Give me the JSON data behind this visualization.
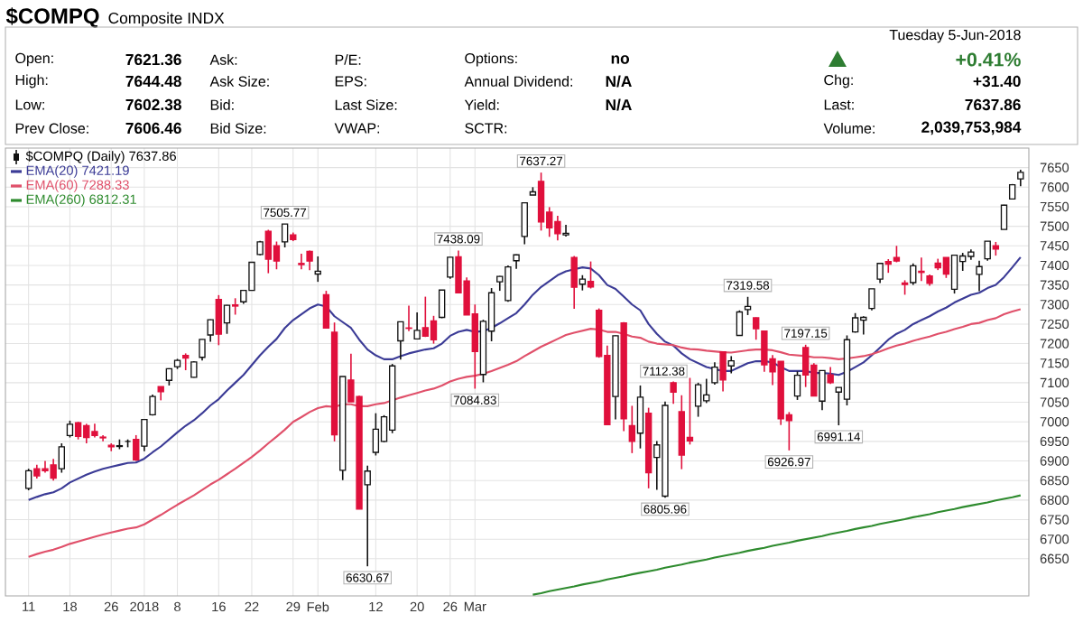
{
  "chart_data": {
    "type": "candlestick",
    "title": "$COMPQ",
    "subtitle": "Composite INDX",
    "legend_title": "$COMPQ (Daily) 7637.86",
    "legend": "top left",
    "grid": true,
    "categories": [
      "11",
      null,
      null,
      null,
      null,
      "18",
      null,
      null,
      null,
      null,
      "26",
      null,
      null,
      null,
      "2018",
      null,
      null,
      null,
      "8",
      null,
      null,
      null,
      null,
      "16",
      null,
      null,
      null,
      "22",
      null,
      null,
      null,
      null,
      "29",
      null,
      null,
      "Feb",
      null,
      null,
      null,
      null,
      null,
      null,
      "12",
      null,
      null,
      null,
      null,
      "20",
      null,
      null,
      null,
      "26",
      null,
      null,
      "Mar",
      null,
      null,
      null,
      null,
      null,
      null,
      null,
      null,
      null,
      null,
      null,
      null,
      null,
      null,
      null,
      null,
      null,
      null,
      null,
      null,
      null,
      null,
      null,
      null,
      null,
      null,
      null,
      null,
      null,
      null,
      null,
      null,
      null,
      null,
      null,
      null,
      null,
      null,
      null,
      null,
      null,
      null,
      null,
      null,
      null,
      null,
      null,
      null,
      null,
      null,
      null,
      null,
      null,
      null,
      null,
      null,
      null,
      null,
      null,
      null,
      null,
      null,
      null,
      null,
      null,
      null
    ],
    "ohlc": [
      [
        6830,
        6880,
        6825,
        6875
      ],
      [
        6880,
        6890,
        6855,
        6862
      ],
      [
        6880,
        6900,
        6870,
        6875
      ],
      [
        6890,
        6905,
        6850,
        6856
      ],
      [
        6880,
        6945,
        6870,
        6936
      ],
      [
        6965,
        7003,
        6960,
        6994
      ],
      [
        6998,
        7000,
        6955,
        6963
      ],
      [
        6990,
        6995,
        6945,
        6960
      ],
      [
        6975,
        6995,
        6960,
        6965
      ],
      [
        6961,
        6966,
        6950,
        6959
      ],
      [
        6940,
        6945,
        6925,
        6936
      ],
      [
        6937,
        6955,
        6930,
        6939
      ],
      [
        6950,
        6955,
        6935,
        6950
      ],
      [
        6955,
        6966,
        6900,
        6903
      ],
      [
        6938,
        7007,
        6925,
        7006
      ],
      [
        7018,
        7070,
        7016,
        7065
      ],
      [
        7090,
        7090,
        7055,
        7077
      ],
      [
        7106,
        7137,
        7093,
        7136
      ],
      [
        7141,
        7161,
        7135,
        7157
      ],
      [
        7170,
        7175,
        7132,
        7163
      ],
      [
        7114,
        7155,
        7113,
        7153
      ],
      [
        7165,
        7211,
        7157,
        7211
      ],
      [
        7222,
        7262,
        7205,
        7261
      ],
      [
        7313,
        7324,
        7196,
        7224
      ],
      [
        7253,
        7299,
        7225,
        7298
      ],
      [
        7299,
        7316,
        7274,
        7296
      ],
      [
        7307,
        7337,
        7302,
        7336
      ],
      [
        7336,
        7409,
        7335,
        7408
      ],
      [
        7428,
        7463,
        7426,
        7460
      ],
      [
        7487,
        7491,
        7380,
        7416
      ],
      [
        7450,
        7461,
        7390,
        7411
      ],
      [
        7460,
        7505.77,
        7446,
        7505.77
      ],
      [
        7478,
        7484,
        7462,
        7466
      ],
      [
        7405,
        7430,
        7390,
        7402
      ],
      [
        7436,
        7438,
        7388,
        7411
      ],
      [
        7378,
        7423,
        7358,
        7385
      ],
      [
        7325,
        7335,
        7239,
        7240
      ],
      [
        7229,
        7254,
        6950,
        6967
      ],
      [
        6876,
        7116,
        6851,
        7116
      ],
      [
        7107,
        7174,
        7051,
        7051
      ],
      [
        7065,
        7067,
        6777,
        6777
      ],
      [
        6839,
        6888,
        6630.67,
        6874
      ],
      [
        6922,
        7022,
        6914,
        6981
      ],
      [
        6950,
        7017,
        6948,
        7013
      ],
      [
        6979,
        7148,
        6971,
        7143
      ],
      [
        7207,
        7256,
        7159,
        7256
      ],
      [
        7240,
        7297,
        7232,
        7239
      ],
      [
        7212,
        7280,
        7212,
        7234
      ],
      [
        7241,
        7320,
        7217,
        7219
      ],
      [
        7258,
        7271,
        7200,
        7210
      ],
      [
        7267,
        7337,
        7265,
        7337
      ],
      [
        7370,
        7421,
        7366,
        7421
      ],
      [
        7422,
        7438.09,
        7330,
        7330
      ],
      [
        7360,
        7369,
        7273,
        7273
      ],
      [
        7276,
        7300,
        7084.83,
        7180
      ],
      [
        7121,
        7261,
        7101,
        7257
      ],
      [
        7232,
        7342,
        7206,
        7330
      ],
      [
        7358,
        7373,
        7335,
        7372
      ],
      [
        7310,
        7400,
        7307,
        7396
      ],
      [
        7412,
        7428,
        7391,
        7427
      ],
      [
        7474,
        7560,
        7454,
        7560
      ],
      [
        7580,
        7600,
        7580,
        7588
      ],
      [
        7615,
        7637.27,
        7489,
        7511
      ],
      [
        7536,
        7549,
        7473,
        7496
      ],
      [
        7512,
        7527,
        7464,
        7481
      ],
      [
        7478,
        7504,
        7474,
        7482
      ],
      [
        7420,
        7424,
        7289,
        7344
      ],
      [
        7352,
        7375,
        7336,
        7365
      ],
      [
        7359,
        7410,
        7341,
        7345
      ],
      [
        7285,
        7290,
        7164,
        7167
      ],
      [
        7170,
        7195,
        6993,
        6993
      ],
      [
        7065,
        7221,
        7006,
        7220
      ],
      [
        7253,
        7255,
        6976,
        7008
      ],
      [
        6990,
        7041,
        6920,
        6950
      ],
      [
        6971,
        7093,
        6932,
        7063
      ],
      [
        7022,
        7036,
        6830,
        6870
      ],
      [
        6909,
        6951,
        6826,
        6941
      ],
      [
        6810,
        7052,
        6805.96,
        7042
      ],
      [
        7100,
        7103,
        7046,
        7076
      ],
      [
        7026,
        7068,
        6879,
        6915
      ],
      [
        6960,
        7112.38,
        6942,
        6951
      ],
      [
        7040,
        7100,
        7013,
        7095
      ],
      [
        7054,
        7110,
        7048,
        7069
      ],
      [
        7100,
        7152,
        7095,
        7140
      ],
      [
        7179,
        7180,
        7078,
        7107
      ],
      [
        7143,
        7168,
        7124,
        7156
      ],
      [
        7221,
        7285,
        7221,
        7281
      ],
      [
        7287,
        7319.58,
        7273,
        7295
      ],
      [
        7266,
        7267,
        7210,
        7238
      ],
      [
        7232,
        7232,
        7128,
        7146
      ],
      [
        7161,
        7171,
        7094,
        7128
      ],
      [
        7155,
        7155,
        6992,
        7008
      ],
      [
        7018,
        7025,
        6926.97,
        7003
      ],
      [
        7066,
        7129,
        7056,
        7119
      ],
      [
        7190,
        7197.15,
        7089,
        7120
      ],
      [
        7145,
        7150,
        7066,
        7066
      ],
      [
        7053,
        7131,
        7030,
        7131
      ],
      [
        7120,
        7140,
        7097,
        7100
      ],
      [
        7076,
        7088,
        6991.14,
        7088
      ],
      [
        7058,
        7221,
        7042,
        7210
      ],
      [
        7230,
        7278,
        7228,
        7266
      ],
      [
        7260,
        7270,
        7223,
        7267
      ],
      [
        7290,
        7340,
        7285,
        7340
      ],
      [
        7365,
        7405,
        7355,
        7405
      ],
      [
        7410,
        7416,
        7381,
        7403
      ],
      [
        7420,
        7450,
        7408,
        7411
      ],
      [
        7355,
        7362,
        7325,
        7351
      ],
      [
        7356,
        7405,
        7350,
        7399
      ],
      [
        7385,
        7420,
        7360,
        7382
      ],
      [
        7373,
        7377,
        7348,
        7354
      ],
      [
        7406,
        7417,
        7388,
        7394
      ],
      [
        7420,
        7420,
        7368,
        7378
      ],
      [
        7339,
        7426,
        7328,
        7426
      ],
      [
        7410,
        7432,
        7386,
        7424
      ],
      [
        7423,
        7441,
        7414,
        7434
      ],
      [
        7377,
        7412,
        7334,
        7397
      ],
      [
        7417,
        7462,
        7412,
        7462
      ],
      [
        7450,
        7460,
        7425,
        7442
      ],
      [
        7492,
        7555,
        7492,
        7554
      ],
      [
        7570,
        7608,
        7570,
        7606
      ],
      [
        7621.36,
        7644.48,
        7602.38,
        7637.86
      ]
    ],
    "series": [
      {
        "name": "EMA(20) 7421.19",
        "type": "line",
        "color": "#3b3b96",
        "values": [
          6800,
          6808,
          6815,
          6820,
          6830,
          6845,
          6855,
          6865,
          6873,
          6880,
          6885,
          6890,
          6895,
          6896,
          6906,
          6922,
          6937,
          6955,
          6973,
          6990,
          7004,
          7022,
          7042,
          7058,
          7080,
          7100,
          7120,
          7145,
          7170,
          7192,
          7212,
          7240,
          7260,
          7275,
          7290,
          7300,
          7295,
          7270,
          7255,
          7240,
          7210,
          7185,
          7170,
          7160,
          7160,
          7168,
          7175,
          7180,
          7185,
          7188,
          7200,
          7220,
          7230,
          7235,
          7230,
          7232,
          7240,
          7252,
          7265,
          7278,
          7300,
          7325,
          7345,
          7360,
          7375,
          7385,
          7390,
          7395,
          7392,
          7375,
          7350,
          7340,
          7320,
          7300,
          7285,
          7250,
          7225,
          7205,
          7195,
          7175,
          7160,
          7150,
          7140,
          7135,
          7130,
          7130,
          7140,
          7150,
          7155,
          7155,
          7152,
          7140,
          7130,
          7130,
          7130,
          7125,
          7125,
          7123,
          7120,
          7128,
          7140,
          7152,
          7170,
          7190,
          7210,
          7225,
          7235,
          7250,
          7260,
          7270,
          7282,
          7292,
          7305,
          7315,
          7325,
          7330,
          7342,
          7350,
          7370,
          7395,
          7421
        ]
      },
      {
        "name": "EMA(60) 7288.33",
        "type": "line",
        "color": "#e0506a",
        "values": [
          6655,
          6662,
          6668,
          6673,
          6680,
          6688,
          6694,
          6700,
          6706,
          6712,
          6717,
          6722,
          6727,
          6730,
          6738,
          6750,
          6762,
          6775,
          6788,
          6800,
          6812,
          6826,
          6840,
          6852,
          6866,
          6880,
          6895,
          6910,
          6927,
          6945,
          6962,
          6980,
          7000,
          7012,
          7025,
          7035,
          7040,
          7038,
          7045,
          7045,
          7040,
          7040,
          7045,
          7048,
          7055,
          7062,
          7068,
          7074,
          7080,
          7085,
          7093,
          7103,
          7110,
          7115,
          7118,
          7123,
          7130,
          7138,
          7146,
          7155,
          7168,
          7180,
          7192,
          7202,
          7212,
          7222,
          7228,
          7233,
          7238,
          7236,
          7230,
          7230,
          7225,
          7218,
          7215,
          7205,
          7200,
          7198,
          7196,
          7190,
          7186,
          7185,
          7182,
          7180,
          7178,
          7177,
          7180,
          7183,
          7185,
          7185,
          7183,
          7178,
          7172,
          7170,
          7168,
          7165,
          7165,
          7163,
          7160,
          7162,
          7165,
          7168,
          7173,
          7180,
          7188,
          7195,
          7200,
          7207,
          7213,
          7218,
          7225,
          7230,
          7237,
          7243,
          7250,
          7253,
          7260,
          7265,
          7275,
          7282,
          7288
        ]
      },
      {
        "name": "EMA(260) 6812.31",
        "type": "line",
        "color": "#2e8b2e",
        "values": [
          null,
          null,
          null,
          null,
          null,
          null,
          null,
          null,
          null,
          null,
          null,
          null,
          null,
          null,
          null,
          null,
          null,
          null,
          null,
          null,
          null,
          null,
          null,
          null,
          null,
          null,
          null,
          null,
          null,
          null,
          null,
          null,
          null,
          null,
          null,
          null,
          null,
          null,
          null,
          null,
          null,
          null,
          null,
          null,
          null,
          null,
          null,
          null,
          null,
          null,
          null,
          null,
          null,
          null,
          null,
          null,
          null,
          null,
          null,
          null,
          null,
          6558,
          6562,
          6567,
          6571,
          6575,
          6579,
          6584,
          6588,
          6592,
          6597,
          6601,
          6605,
          6610,
          6614,
          6618,
          6622,
          6627,
          6631,
          6635,
          6640,
          6644,
          6648,
          6653,
          6657,
          6661,
          6665,
          6670,
          6674,
          6678,
          6683,
          6687,
          6691,
          6696,
          6700,
          6704,
          6708,
          6713,
          6717,
          6721,
          6726,
          6730,
          6734,
          6739,
          6743,
          6747,
          6751,
          6756,
          6760,
          6764,
          6769,
          6773,
          6777,
          6782,
          6786,
          6790,
          6794,
          6799,
          6803,
          6807,
          6812
        ]
      }
    ],
    "ylim": [
      6555,
      7700
    ],
    "yticks": [
      6650,
      6700,
      6750,
      6800,
      6850,
      6900,
      6950,
      7000,
      7050,
      7100,
      7150,
      7200,
      7250,
      7300,
      7350,
      7400,
      7450,
      7500,
      7550,
      7600,
      7650
    ],
    "annotations": [
      "Open:",
      "7621.36",
      "High:",
      "7644.48",
      "Low:",
      "7602.38",
      "Prev Close:",
      "7606.46",
      "Ask:",
      "Ask Size:",
      "Bid:",
      "Bid Size:",
      "P/E:",
      "EPS:",
      "Last Size:",
      "VWAP:",
      "Options:",
      "no",
      "Annual Dividend:",
      "N/A",
      "Yield:",
      "N/A",
      "SCTR:",
      "Tuesday  5-Jun-2018",
      "+0.41%",
      "Chg:",
      "+31.40",
      "Last:",
      "7637.86",
      "Volume:",
      "2,039,753,984",
      {
        "text": "7505.77",
        "y": 7505.77
      },
      {
        "text": "6630.67",
        "y": 6630.67
      },
      {
        "text": "7438.09",
        "y": 7438.09
      },
      {
        "text": "7637.27",
        "y": 7637.27
      },
      {
        "text": "7084.83",
        "y": 7084.83
      },
      {
        "text": "6805.96",
        "y": 6805.96
      },
      {
        "text": "7112.38",
        "y": 7112.38
      },
      {
        "text": "7319.58",
        "y": 7319.58
      },
      {
        "text": "7197.15",
        "y": 7197.15
      },
      {
        "text": "6926.97",
        "y": 6926.97
      },
      {
        "text": "6991.14",
        "y": 6991.14
      }
    ]
  }
}
